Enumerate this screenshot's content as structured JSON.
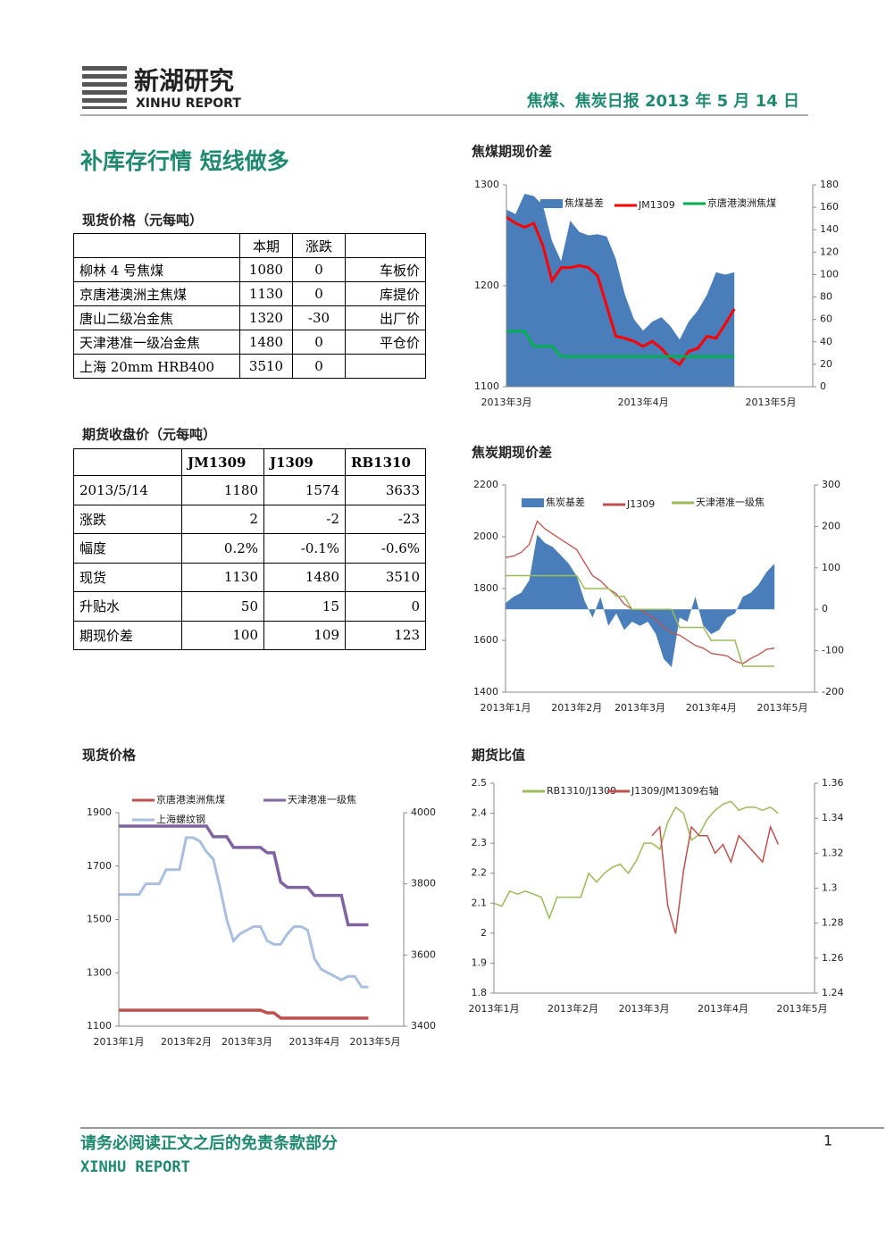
{
  "header": {
    "logo": "新湖研究",
    "brand": "XINHU REPORT",
    "report": "焦煤、焦炭日报 2013 年 5 月 14 日"
  },
  "title": "补库存行情 短线做多",
  "spot_table": {
    "caption": "现货价格（元每吨）",
    "columns": [
      "本期",
      "涨跌"
    ],
    "rows": [
      [
        "柳林 4 号焦煤",
        "1080",
        "0",
        "车板价"
      ],
      [
        "京唐港澳洲主焦煤",
        "1130",
        "0",
        "库提价"
      ],
      [
        "唐山二级冶金焦",
        "1320",
        "-30",
        "出厂价"
      ],
      [
        "天津港准一级冶金焦",
        "1480",
        "0",
        "平仓价"
      ],
      [
        "上海 20mm HRB400",
        "3510",
        "0"
      ]
    ]
  },
  "futures_table": {
    "caption": "期货收盘价（元每吨）",
    "columns": [
      "JM1309",
      "J1309",
      "RB1310"
    ],
    "rows": [
      [
        "2013/5/14",
        "1180",
        "1574",
        "3633"
      ],
      [
        "涨跌",
        "2",
        "-2",
        "-23"
      ],
      [
        "幅度",
        "0.2%",
        "-0.1%",
        "-0.6%"
      ],
      [
        "现货",
        "1130",
        "1480",
        "3510"
      ],
      [
        "升贴水",
        "50",
        "15",
        "0"
      ],
      [
        "期现价差",
        "100",
        "109",
        "123"
      ]
    ]
  },
  "chart_data": [
    {
      "type": "line",
      "title": "焦煤期现价差",
      "categories": [
        "2013年3月",
        null,
        null,
        null,
        null,
        null,
        null,
        null,
        null,
        null,
        null,
        null,
        null,
        null,
        null,
        "2013年4月",
        null,
        null,
        null,
        null,
        null,
        null,
        null,
        null,
        null,
        null,
        null,
        null,
        null,
        "2013年5月"
      ],
      "ylim": [
        1100,
        1300
      ],
      "yticks": [
        1100,
        1200,
        1300
      ],
      "y2lim": [
        0,
        180
      ],
      "y2ticks": [
        0,
        20,
        40,
        60,
        80,
        100,
        120,
        140,
        160,
        180
      ],
      "series": [
        {
          "name": "焦煤基差",
          "type": "area",
          "color": "#4a7ebb",
          "axis": "y2",
          "values": [
            158,
            154,
            172,
            170,
            162,
            130,
            112,
            148,
            138,
            135,
            136,
            134,
            114,
            82,
            60,
            50,
            58,
            62,
            54,
            42,
            58,
            68,
            82,
            102,
            100,
            102,
            null,
            null,
            null,
            null
          ]
        },
        {
          "name": "JM1309",
          "color": "#ff0000",
          "values": [
            1268,
            1262,
            1258,
            1262,
            1240,
            1205,
            1218,
            1218,
            1220,
            1218,
            1210,
            1180,
            1150,
            1148,
            1145,
            1140,
            1145,
            1138,
            1128,
            1122,
            1135,
            1138,
            1150,
            1148,
            1162,
            1177,
            null,
            null,
            null,
            null
          ]
        },
        {
          "name": "京唐港澳洲焦煤",
          "color": "#00b050",
          "values": [
            1155,
            1155,
            1155,
            1140,
            1140,
            1140,
            1130,
            1130,
            1130,
            1130,
            1130,
            1130,
            1130,
            1130,
            1130,
            1130,
            1130,
            1130,
            1130,
            1130,
            1130,
            1130,
            1130,
            1130,
            1130,
            1130,
            null,
            null,
            null,
            null
          ]
        }
      ]
    },
    {
      "type": "line",
      "title": "焦炭期现价差",
      "categories": [
        "2013年1月",
        null,
        null,
        null,
        null,
        null,
        null,
        null,
        null,
        "2013年2月",
        null,
        null,
        null,
        null,
        null,
        null,
        null,
        "2013年3月",
        null,
        null,
        null,
        null,
        null,
        null,
        null,
        null,
        "2013年4月",
        null,
        null,
        null,
        null,
        null,
        null,
        null,
        null,
        "2013年5月"
      ],
      "ylim": [
        1400,
        2200
      ],
      "yticks": [
        1400,
        1600,
        1800,
        2000,
        2200
      ],
      "y2lim": [
        -200,
        300
      ],
      "y2ticks": [
        -200,
        -100,
        0,
        100,
        200,
        300
      ],
      "series": [
        {
          "name": "焦炭基差",
          "type": "area",
          "color": "#4a7ebb",
          "axis": "y2",
          "values": [
            15,
            30,
            40,
            70,
            180,
            160,
            150,
            130,
            110,
            80,
            20,
            -20,
            30,
            -40,
            -10,
            -50,
            -30,
            -40,
            -30,
            -60,
            -120,
            -140,
            -20,
            -30,
            30,
            -40,
            -60,
            -50,
            -20,
            -10,
            30,
            40,
            60,
            90,
            110,
            null
          ]
        },
        {
          "name": "J1309",
          "color": "#c0504d",
          "values": [
            1920,
            1925,
            1940,
            1970,
            2060,
            2030,
            2010,
            1990,
            1970,
            1950,
            1900,
            1850,
            1830,
            1800,
            1780,
            1740,
            1720,
            1720,
            1700,
            1680,
            1650,
            1630,
            1620,
            1600,
            1580,
            1570,
            1550,
            1545,
            1540,
            1520,
            1510,
            1530,
            1545,
            1565,
            1570,
            null
          ]
        },
        {
          "name": "天津港准一级焦",
          "color": "#9bbb59",
          "values": [
            1850,
            1850,
            1850,
            1850,
            1850,
            1850,
            1850,
            1850,
            1850,
            1850,
            1800,
            1800,
            1800,
            1800,
            1770,
            1770,
            1720,
            1720,
            1720,
            1720,
            1720,
            1720,
            1650,
            1650,
            1650,
            1650,
            1600,
            1600,
            1600,
            1600,
            1500,
            1500,
            1500,
            1500,
            1500,
            null
          ]
        }
      ]
    },
    {
      "type": "line",
      "title": "现货价格",
      "categories": [
        "2013年1月",
        null,
        null,
        null,
        null,
        null,
        null,
        null,
        null,
        null,
        "2013年2月",
        null,
        null,
        null,
        null,
        null,
        null,
        null,
        null,
        "2013年3月",
        null,
        null,
        null,
        null,
        null,
        null,
        null,
        null,
        null,
        "2013年4月",
        null,
        null,
        null,
        null,
        null,
        null,
        null,
        null,
        "2013年5月"
      ],
      "ylim": [
        1100,
        1900
      ],
      "yticks": [
        1100,
        1300,
        1500,
        1700,
        1900
      ],
      "y2lim": [
        3400,
        4000
      ],
      "y2ticks": [
        3400,
        3600,
        3800,
        4000
      ],
      "series": [
        {
          "name": "京唐港澳洲焦煤",
          "color": "#c0504d",
          "values": [
            1160,
            1160,
            1160,
            1160,
            1160,
            1160,
            1160,
            1160,
            1160,
            1160,
            1160,
            1160,
            1160,
            1160,
            1160,
            1160,
            1160,
            1160,
            1160,
            1160,
            1160,
            1160,
            1150,
            1150,
            1130,
            1130,
            1130,
            1130,
            1130,
            1130,
            1130,
            1130,
            1130,
            1130,
            1130,
            1130,
            1130,
            1130,
            null
          ]
        },
        {
          "name": "天津港准一级焦",
          "color": "#8064a2",
          "values": [
            1850,
            1850,
            1850,
            1850,
            1850,
            1850,
            1850,
            1850,
            1850,
            1850,
            1850,
            1850,
            1850,
            1850,
            1810,
            1810,
            1810,
            1770,
            1770,
            1770,
            1770,
            1770,
            1750,
            1750,
            1640,
            1620,
            1620,
            1620,
            1620,
            1590,
            1590,
            1590,
            1590,
            1590,
            1480,
            1480,
            1480,
            1480,
            null
          ]
        },
        {
          "name": "上海螺纹钢",
          "color": "#a8bfe0",
          "axis": "y2",
          "values": [
            3770,
            3770,
            3770,
            3770,
            3800,
            3800,
            3800,
            3840,
            3840,
            3840,
            3930,
            3930,
            3920,
            3890,
            3870,
            3790,
            3700,
            3640,
            3660,
            3670,
            3680,
            3680,
            3640,
            3630,
            3630,
            3660,
            3680,
            3680,
            3670,
            3590,
            3560,
            3550,
            3540,
            3530,
            3540,
            3540,
            3510,
            3510,
            null
          ]
        }
      ]
    },
    {
      "type": "line",
      "title": "期货比值",
      "categories": [
        "2013年1月",
        null,
        null,
        null,
        null,
        null,
        null,
        null,
        null,
        null,
        "2013年2月",
        null,
        null,
        null,
        null,
        null,
        null,
        null,
        null,
        "2013年3月",
        null,
        null,
        null,
        null,
        null,
        null,
        null,
        null,
        null,
        "2013年4月",
        null,
        null,
        null,
        null,
        null,
        null,
        null,
        null,
        null,
        "2013年5月"
      ],
      "ylim": [
        1.8,
        2.5
      ],
      "yticks": [
        1.8,
        1.9,
        2,
        2.1,
        2.2,
        2.3,
        2.4,
        2.5
      ],
      "y2lim": [
        1.24,
        1.36
      ],
      "y2ticks": [
        1.24,
        1.26,
        1.28,
        1.3,
        1.32,
        1.34,
        1.36
      ],
      "series": [
        {
          "name": "RB1310/J1309",
          "color": "#9bbb59",
          "values": [
            2.1,
            2.09,
            2.14,
            2.13,
            2.14,
            2.13,
            2.12,
            2.05,
            2.12,
            2.12,
            2.12,
            2.12,
            2.2,
            2.17,
            2.2,
            2.22,
            2.23,
            2.2,
            2.24,
            2.3,
            2.3,
            2.28,
            2.37,
            2.42,
            2.4,
            2.31,
            2.33,
            2.38,
            2.41,
            2.43,
            2.44,
            2.41,
            2.42,
            2.42,
            2.41,
            2.42,
            2.4,
            null,
            null,
            null
          ]
        },
        {
          "name": "J1309/JM1309右轴",
          "color": "#c0504d",
          "axis": "y2",
          "values": [
            null,
            null,
            null,
            null,
            null,
            null,
            null,
            null,
            null,
            null,
            null,
            null,
            null,
            null,
            null,
            null,
            null,
            null,
            null,
            null,
            1.33,
            1.335,
            1.29,
            1.274,
            1.31,
            1.335,
            1.33,
            1.33,
            1.32,
            1.325,
            1.315,
            1.33,
            1.325,
            1.32,
            1.315,
            1.335,
            1.325,
            null,
            null,
            null
          ]
        }
      ]
    }
  ],
  "footer": {
    "disclaimer": "请务必阅读正文之后的免责条款部分",
    "brand": "XINHU REPORT",
    "page": "1"
  }
}
